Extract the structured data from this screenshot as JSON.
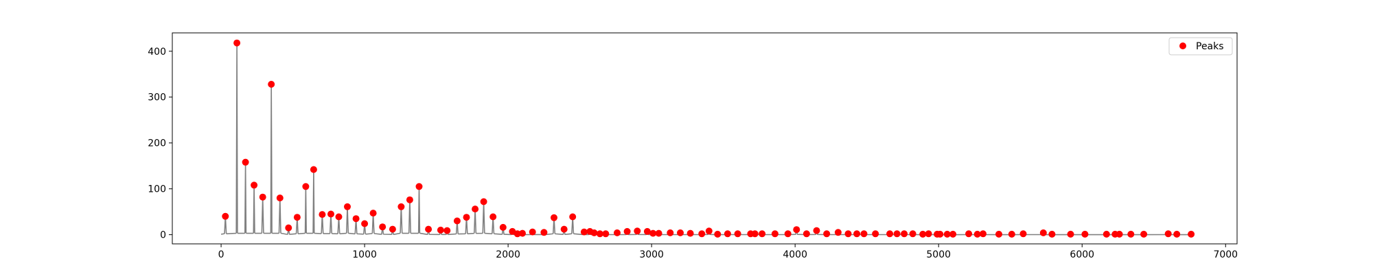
{
  "chart_data": {
    "type": "scatter",
    "title": "",
    "xlabel": "",
    "ylabel": "",
    "xlim": [
      -340,
      7080
    ],
    "ylim": [
      -20,
      440
    ],
    "x_ticks": [
      0,
      1000,
      2000,
      3000,
      4000,
      5000,
      6000,
      7000
    ],
    "y_ticks": [
      0,
      100,
      200,
      300,
      400
    ],
    "grid": false,
    "legend": {
      "position": "top-right",
      "entries": [
        "Peaks"
      ]
    },
    "colors": {
      "signal": "#808080",
      "peaks": "#ff0000",
      "axes": "#000000"
    },
    "series": [
      {
        "name": "Peaks",
        "kind": "scatter",
        "x": [
          30,
          110,
          170,
          230,
          290,
          350,
          410,
          470,
          530,
          590,
          645,
          705,
          765,
          820,
          880,
          940,
          1000,
          1060,
          1125,
          1195,
          1255,
          1315,
          1380,
          1445,
          1530,
          1575,
          1645,
          1710,
          1770,
          1830,
          1895,
          1965,
          2030,
          2065,
          2100,
          2170,
          2250,
          2320,
          2390,
          2450,
          2530,
          2570,
          2600,
          2640,
          2680,
          2760,
          2830,
          2900,
          2970,
          3010,
          3050,
          3130,
          3200,
          3270,
          3350,
          3400,
          3460,
          3530,
          3600,
          3690,
          3720,
          3770,
          3860,
          3950,
          4010,
          4080,
          4150,
          4220,
          4300,
          4370,
          4430,
          4480,
          4560,
          4660,
          4710,
          4760,
          4820,
          4890,
          4930,
          4990,
          5010,
          5060,
          5100,
          5210,
          5270,
          5310,
          5420,
          5510,
          5590,
          5730,
          5790,
          5920,
          6020,
          6170,
          6230,
          6260,
          6340,
          6430,
          6600,
          6660,
          6760
        ],
        "y": [
          40,
          418,
          158,
          108,
          82,
          328,
          80,
          15,
          38,
          105,
          142,
          44,
          45,
          39,
          61,
          35,
          24,
          47,
          17,
          12,
          61,
          76,
          105,
          12,
          10,
          9,
          30,
          38,
          56,
          72,
          39,
          16,
          7,
          2,
          3,
          6,
          5,
          37,
          12,
          39,
          6,
          7,
          4,
          2,
          2,
          4,
          7,
          8,
          7,
          3,
          3,
          4,
          4,
          3,
          2,
          8,
          1,
          2,
          2,
          2,
          2,
          2,
          2,
          2,
          11,
          2,
          9,
          2,
          5,
          2,
          2,
          2,
          2,
          2,
          2,
          2,
          2,
          1,
          2,
          1,
          1,
          1,
          1,
          2,
          1,
          2,
          1,
          1,
          2,
          4,
          1,
          1,
          1,
          1,
          1,
          1,
          1,
          1,
          2,
          1,
          1
        ]
      }
    ]
  }
}
